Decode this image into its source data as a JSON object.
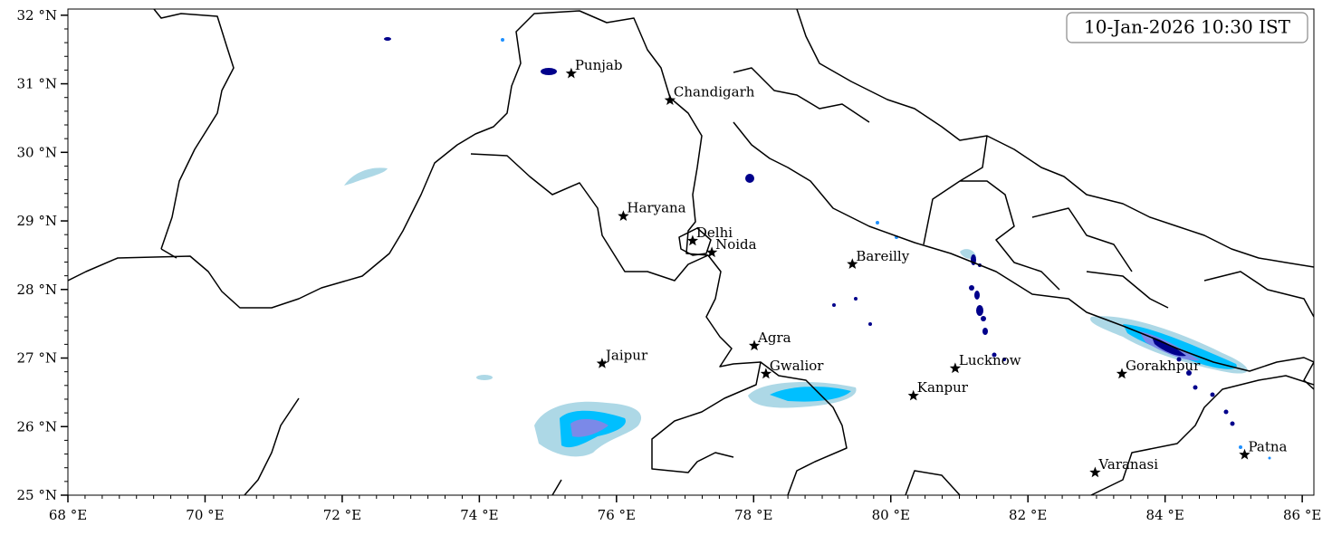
{
  "chart_data": {
    "type": "map",
    "title": "10-Jan-2026 10:30 IST",
    "xlim": [
      68,
      86.17
    ],
    "ylim": [
      25,
      32.09
    ],
    "xticks": [
      {
        "value": 68,
        "label": "68 °E"
      },
      {
        "value": 70,
        "label": "70 °E"
      },
      {
        "value": 72,
        "label": "72 °E"
      },
      {
        "value": 74,
        "label": "74 °E"
      },
      {
        "value": 76,
        "label": "76 °E"
      },
      {
        "value": 78,
        "label": "78 °E"
      },
      {
        "value": 80,
        "label": "80 °E"
      },
      {
        "value": 82,
        "label": "82 °E"
      },
      {
        "value": 84,
        "label": "84 °E"
      },
      {
        "value": 86,
        "label": "86 °E"
      }
    ],
    "yticks": [
      {
        "value": 25,
        "label": "25 °N"
      },
      {
        "value": 26,
        "label": "26 °N"
      },
      {
        "value": 27,
        "label": "27 °N"
      },
      {
        "value": 28,
        "label": "28 °N"
      },
      {
        "value": 29,
        "label": "29 °N"
      },
      {
        "value": 30,
        "label": "30 °N"
      },
      {
        "value": 31,
        "label": "31 °N"
      },
      {
        "value": 32,
        "label": "32 °N"
      }
    ],
    "points": [
      {
        "name": "Punjab",
        "lon": 75.34,
        "lat": 31.15
      },
      {
        "name": "Chandigarh",
        "lon": 76.78,
        "lat": 30.76
      },
      {
        "name": "Haryana",
        "lon": 76.1,
        "lat": 29.07
      },
      {
        "name": "Delhi",
        "lon": 77.11,
        "lat": 28.71
      },
      {
        "name": "Noida",
        "lon": 77.39,
        "lat": 28.54
      },
      {
        "name": "Bareilly",
        "lon": 79.44,
        "lat": 28.37
      },
      {
        "name": "Agra",
        "lon": 78.01,
        "lat": 27.18
      },
      {
        "name": "Jaipur",
        "lon": 75.79,
        "lat": 26.92
      },
      {
        "name": "Gwalior",
        "lon": 78.18,
        "lat": 26.77
      },
      {
        "name": "Lucknow",
        "lon": 80.94,
        "lat": 26.85
      },
      {
        "name": "Kanpur",
        "lon": 80.33,
        "lat": 26.45
      },
      {
        "name": "Gorakhpur",
        "lon": 83.37,
        "lat": 26.77
      },
      {
        "name": "Varanasi",
        "lon": 82.98,
        "lat": 25.33
      },
      {
        "name": "Patna",
        "lon": 85.16,
        "lat": 25.59
      }
    ]
  }
}
